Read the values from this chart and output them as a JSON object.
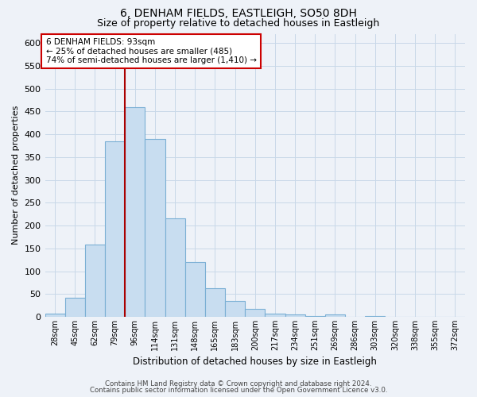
{
  "title": "6, DENHAM FIELDS, EASTLEIGH, SO50 8DH",
  "subtitle": "Size of property relative to detached houses in Eastleigh",
  "xlabel": "Distribution of detached houses by size in Eastleigh",
  "ylabel": "Number of detached properties",
  "bar_labels": [
    "28sqm",
    "45sqm",
    "62sqm",
    "79sqm",
    "96sqm",
    "114sqm",
    "131sqm",
    "148sqm",
    "165sqm",
    "183sqm",
    "200sqm",
    "217sqm",
    "234sqm",
    "251sqm",
    "269sqm",
    "286sqm",
    "303sqm",
    "320sqm",
    "338sqm",
    "355sqm",
    "372sqm"
  ],
  "bar_values": [
    7,
    42,
    158,
    385,
    460,
    390,
    215,
    120,
    62,
    35,
    18,
    7,
    5,
    2,
    5,
    0,
    2,
    0,
    0,
    0,
    0
  ],
  "bar_color": "#c8ddf0",
  "bar_edge_color": "#7aafd4",
  "vline_color": "#aa0000",
  "ylim": [
    0,
    620
  ],
  "yticks": [
    0,
    50,
    100,
    150,
    200,
    250,
    300,
    350,
    400,
    450,
    500,
    550,
    600
  ],
  "grid_color": "#c8d8e8",
  "annotation_box_color": "#ffffff",
  "annotation_border_color": "#cc0000",
  "annotation_line1": "6 DENHAM FIELDS: 93sqm",
  "annotation_line2": "← 25% of detached houses are smaller (485)",
  "annotation_line3": "74% of semi-detached houses are larger (1,410) →",
  "footnote1": "Contains HM Land Registry data © Crown copyright and database right 2024.",
  "footnote2": "Contains public sector information licensed under the Open Government Licence v3.0.",
  "bg_color": "#eef2f8",
  "title_fontsize": 10,
  "subtitle_fontsize": 9
}
